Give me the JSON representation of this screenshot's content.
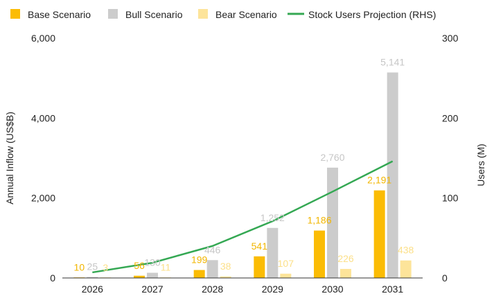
{
  "chart_data": {
    "type": "bar",
    "title": "",
    "categories": [
      "2026",
      "2027",
      "2028",
      "2029",
      "2030",
      "2031"
    ],
    "series": [
      {
        "name": "Base Scenario",
        "type": "bar",
        "axis": "left",
        "color": "#FBBC04",
        "label_color": "#F2B600",
        "values": [
          10,
          56,
          199,
          541,
          1186,
          2191
        ],
        "labels": [
          "10",
          "56",
          "199",
          "541",
          "1,186",
          "2,191"
        ]
      },
      {
        "name": "Bull Scenario",
        "type": "bar",
        "axis": "left",
        "color": "#CCCCCC",
        "label_color": "#C6C6C6",
        "values": [
          25,
          130,
          446,
          1252,
          2760,
          5141
        ],
        "labels": [
          "25",
          "130",
          "446",
          "1,252",
          "2,760",
          "5,141"
        ]
      },
      {
        "name": "Bear Scenario",
        "type": "bar",
        "axis": "left",
        "color": "#FDE49A",
        "label_color": "#FCE08A",
        "values": [
          3,
          11,
          38,
          107,
          226,
          438
        ],
        "labels": [
          "3",
          "11",
          "38",
          "107",
          "226",
          "438"
        ]
      },
      {
        "name": "Stock Users Projection (RHS)",
        "type": "line",
        "axis": "right",
        "color": "#34A853",
        "values": [
          7,
          19,
          40,
          71,
          108,
          146
        ]
      }
    ],
    "ylabel_left": "Annual Inflow (US$B)",
    "ylabel_right": "Users (M)",
    "ylim_left": [
      0,
      6000
    ],
    "yticks_left": [
      0,
      2000,
      4000,
      6000
    ],
    "ytick_labels_left": [
      "0",
      "2,000",
      "4,000",
      "6,000"
    ],
    "ylim_right": [
      0,
      300
    ],
    "yticks_right": [
      0,
      100,
      200,
      300
    ],
    "ytick_labels_right": [
      "0",
      "100",
      "200",
      "300"
    ],
    "grid": false,
    "legend_position": "top"
  }
}
